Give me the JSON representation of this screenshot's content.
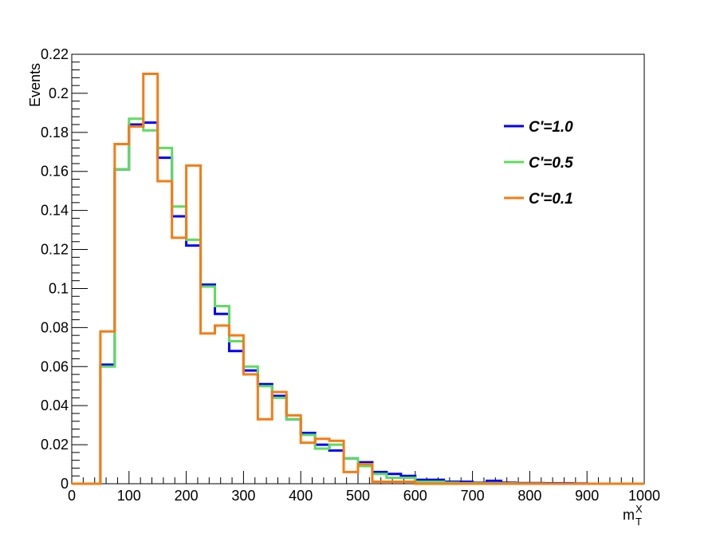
{
  "chart_data": {
    "type": "line",
    "step": true,
    "title": "",
    "xlabel": "m",
    "xlabel_sup": "X",
    "xlabel_sub": "T",
    "ylabel": "Events",
    "xlim": [
      0,
      1000
    ],
    "ylim": [
      0,
      0.22
    ],
    "grid": false,
    "legend_position": "top-right",
    "x_ticks": [
      0,
      100,
      200,
      300,
      400,
      500,
      600,
      700,
      800,
      900,
      1000
    ],
    "x_tick_labels": [
      "0",
      "100",
      "200",
      "300",
      "400",
      "500",
      "600",
      "700",
      "800",
      "900",
      "1000"
    ],
    "y_ticks": [
      0,
      0.02,
      0.04,
      0.06,
      0.08,
      0.1,
      0.12,
      0.14,
      0.16,
      0.18,
      0.2,
      0.22
    ],
    "y_tick_labels": [
      "0",
      "0.02",
      "0.04",
      "0.06",
      "0.08",
      "0.1",
      "0.12",
      "0.14",
      "0.16",
      "0.18",
      "0.2",
      "0.22"
    ],
    "bin_edges": [
      0,
      25,
      50,
      75,
      100,
      125,
      150,
      175,
      200,
      225,
      250,
      275,
      300,
      325,
      350,
      375,
      400,
      425,
      450,
      475,
      500,
      525,
      550,
      575,
      600,
      625,
      650,
      675,
      700,
      725,
      750,
      775,
      800,
      825,
      850,
      875,
      900,
      925,
      950,
      975,
      1000
    ],
    "series": [
      {
        "name": "C'=1.0",
        "color": "#0000ff",
        "values": [
          0,
          0,
          0.061,
          0.161,
          0.184,
          0.185,
          0.167,
          0.137,
          0.122,
          0.102,
          0.087,
          0.068,
          0.058,
          0.051,
          0.045,
          0.033,
          0.026,
          0.02,
          0.017,
          0.013,
          0.011,
          0.006,
          0.005,
          0.004,
          0.002,
          0.002,
          0.001,
          0.001,
          0.0005,
          0.0015,
          0.0005,
          0.0003,
          0.0003,
          0.0002,
          0.0002,
          0.0001,
          0,
          0,
          0,
          0
        ]
      },
      {
        "name": "C'=0.5",
        "color": "#5fdc5f",
        "values": [
          0,
          0,
          0.06,
          0.161,
          0.187,
          0.181,
          0.172,
          0.142,
          0.125,
          0.101,
          0.091,
          0.073,
          0.06,
          0.05,
          0.044,
          0.033,
          0.025,
          0.018,
          0.02,
          0.013,
          0.009,
          0.005,
          0.003,
          0.003,
          0.001,
          0.001,
          0.0005,
          0.0003,
          0.0003,
          0.0003,
          0.0002,
          0.0001,
          0.0001,
          0,
          0,
          0,
          0,
          0,
          0,
          0
        ]
      },
      {
        "name": "C'=0.1",
        "color": "#f57c14",
        "values": [
          0,
          0,
          0.078,
          0.174,
          0.183,
          0.21,
          0.155,
          0.126,
          0.163,
          0.077,
          0.081,
          0.076,
          0.056,
          0.033,
          0.047,
          0.035,
          0.021,
          0.023,
          0.022,
          0.006,
          0.01,
          0.001,
          0.001,
          0.001,
          0,
          0,
          0,
          0,
          0,
          0,
          0,
          0,
          0,
          0,
          0,
          0,
          0,
          0,
          0,
          0
        ]
      }
    ]
  }
}
